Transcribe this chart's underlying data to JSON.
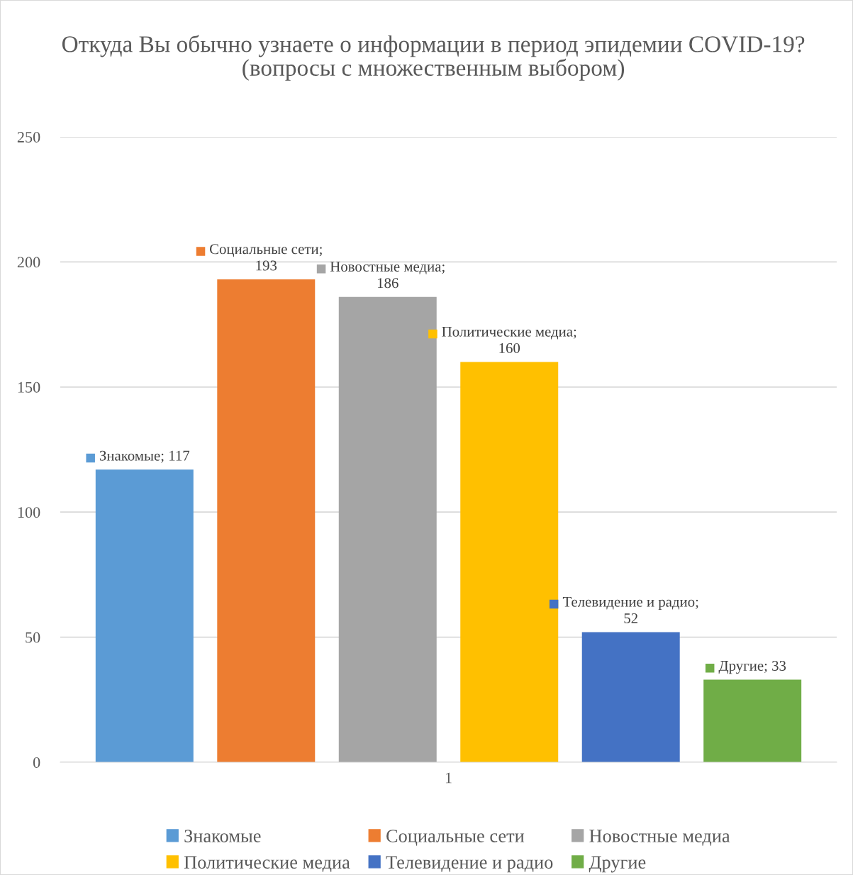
{
  "chart_data": {
    "type": "bar",
    "title": "Откуда Вы обычно узнаете о информации в период эпидемии COVID-19? (вопросы с множественным выбором)",
    "categories": [
      "1"
    ],
    "series": [
      {
        "name": "Знакомые",
        "color": "#5b9bd5",
        "values": [
          117
        ],
        "value_labels": [
          "Знакомые; 117"
        ]
      },
      {
        "name": "Социальные сети",
        "color": "#ed7d31",
        "values": [
          193
        ],
        "value_labels": [
          "Социальные сети;\n193"
        ]
      },
      {
        "name": "Новостные медиа",
        "color": "#a5a5a5",
        "values": [
          186
        ],
        "value_labels": [
          "Новостные медиа;\n186"
        ]
      },
      {
        "name": "Политические медиа",
        "color": "#ffc000",
        "values": [
          160
        ],
        "value_labels": [
          "Политические медиа;\n160"
        ]
      },
      {
        "name": "Телевидение и радио",
        "color": "#4472c4",
        "values": [
          52
        ],
        "value_labels": [
          "Телевидение и радио;\n52"
        ]
      },
      {
        "name": "Другие",
        "color": "#70ad47",
        "values": [
          33
        ],
        "value_labels": [
          "Другие; 33"
        ]
      }
    ],
    "ylim": [
      0,
      250
    ],
    "yticks": [
      0,
      50,
      100,
      150,
      200,
      250
    ],
    "grid": "y",
    "legend": "bottom"
  }
}
